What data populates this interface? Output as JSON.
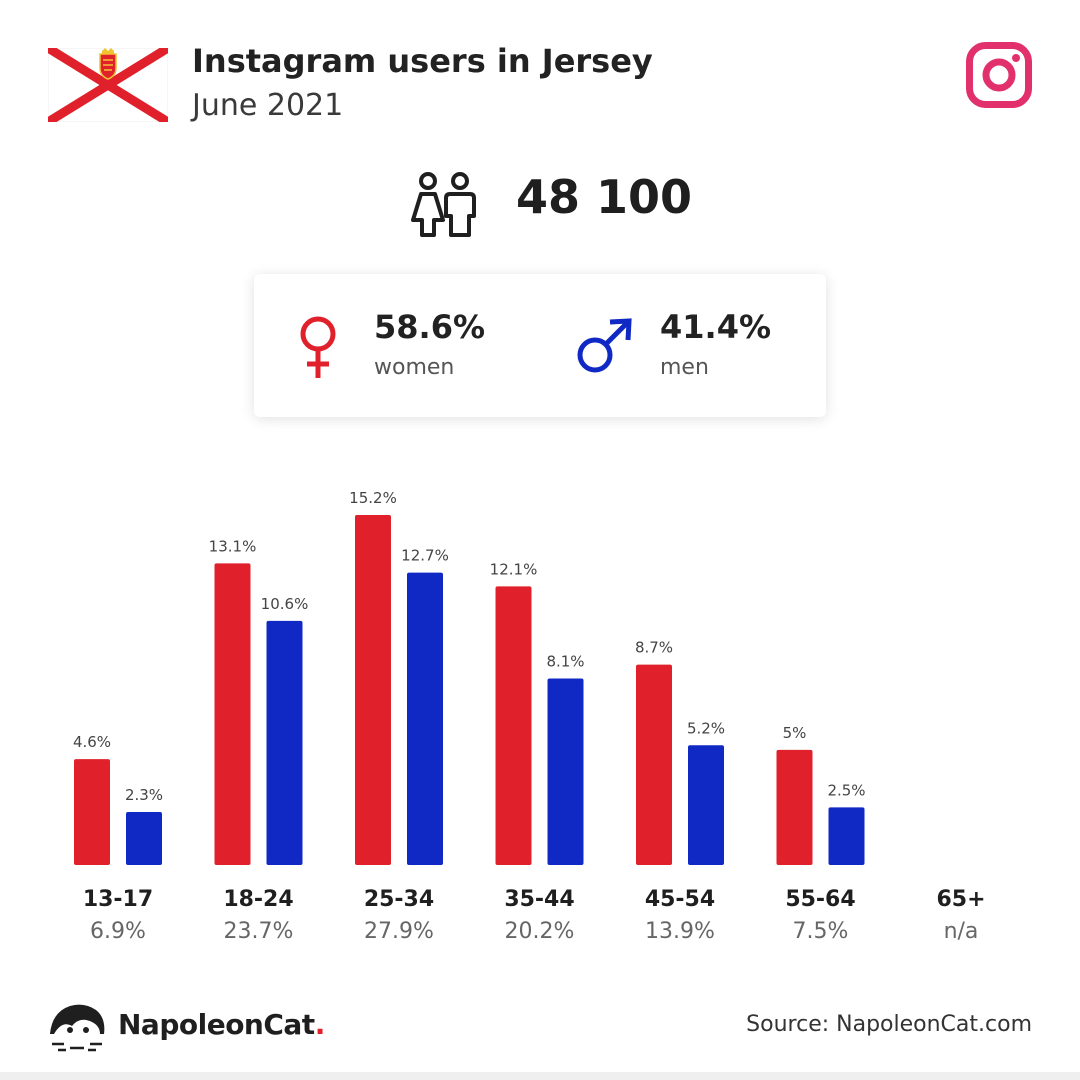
{
  "header": {
    "title": "Instagram users in Jersey",
    "subtitle": "June 2021"
  },
  "total_users": "48 100",
  "gender": {
    "women_pct": "58.6%",
    "women_label": "women",
    "men_pct": "41.4%",
    "men_label": "men"
  },
  "colors": {
    "women": "#e0202a",
    "men": "#1029c4",
    "instagram": "#e1306c"
  },
  "chart_data": {
    "type": "bar",
    "categories": [
      "13-17",
      "18-24",
      "25-34",
      "35-44",
      "45-54",
      "55-64",
      "65+"
    ],
    "category_totals": [
      "6.9%",
      "23.7%",
      "27.9%",
      "20.2%",
      "13.9%",
      "7.5%",
      "n/a"
    ],
    "series": [
      {
        "key": "women",
        "values": [
          4.6,
          13.1,
          15.2,
          12.1,
          8.7,
          5,
          null
        ],
        "labels": [
          "4.6%",
          "13.1%",
          "15.2%",
          "12.1%",
          "8.7%",
          "5%",
          ""
        ]
      },
      {
        "key": "men",
        "values": [
          2.3,
          10.6,
          12.7,
          8.1,
          5.2,
          2.5,
          null
        ],
        "labels": [
          "2.3%",
          "10.6%",
          "12.7%",
          "8.1%",
          "5.2%",
          "2.5%",
          ""
        ]
      }
    ],
    "ylim": [
      0,
      15.2
    ],
    "grid": false,
    "legend": "none"
  },
  "footer": {
    "brand": "NapoleonCat",
    "brand_dot": ".",
    "source": "Source: NapoleonCat.com"
  },
  "icons": {
    "flag": "jersey-flag-icon",
    "instagram": "instagram-icon",
    "users": "users-icon",
    "female": "female-symbol-icon",
    "male": "male-symbol-icon",
    "logo": "napoleoncat-logo-icon"
  }
}
